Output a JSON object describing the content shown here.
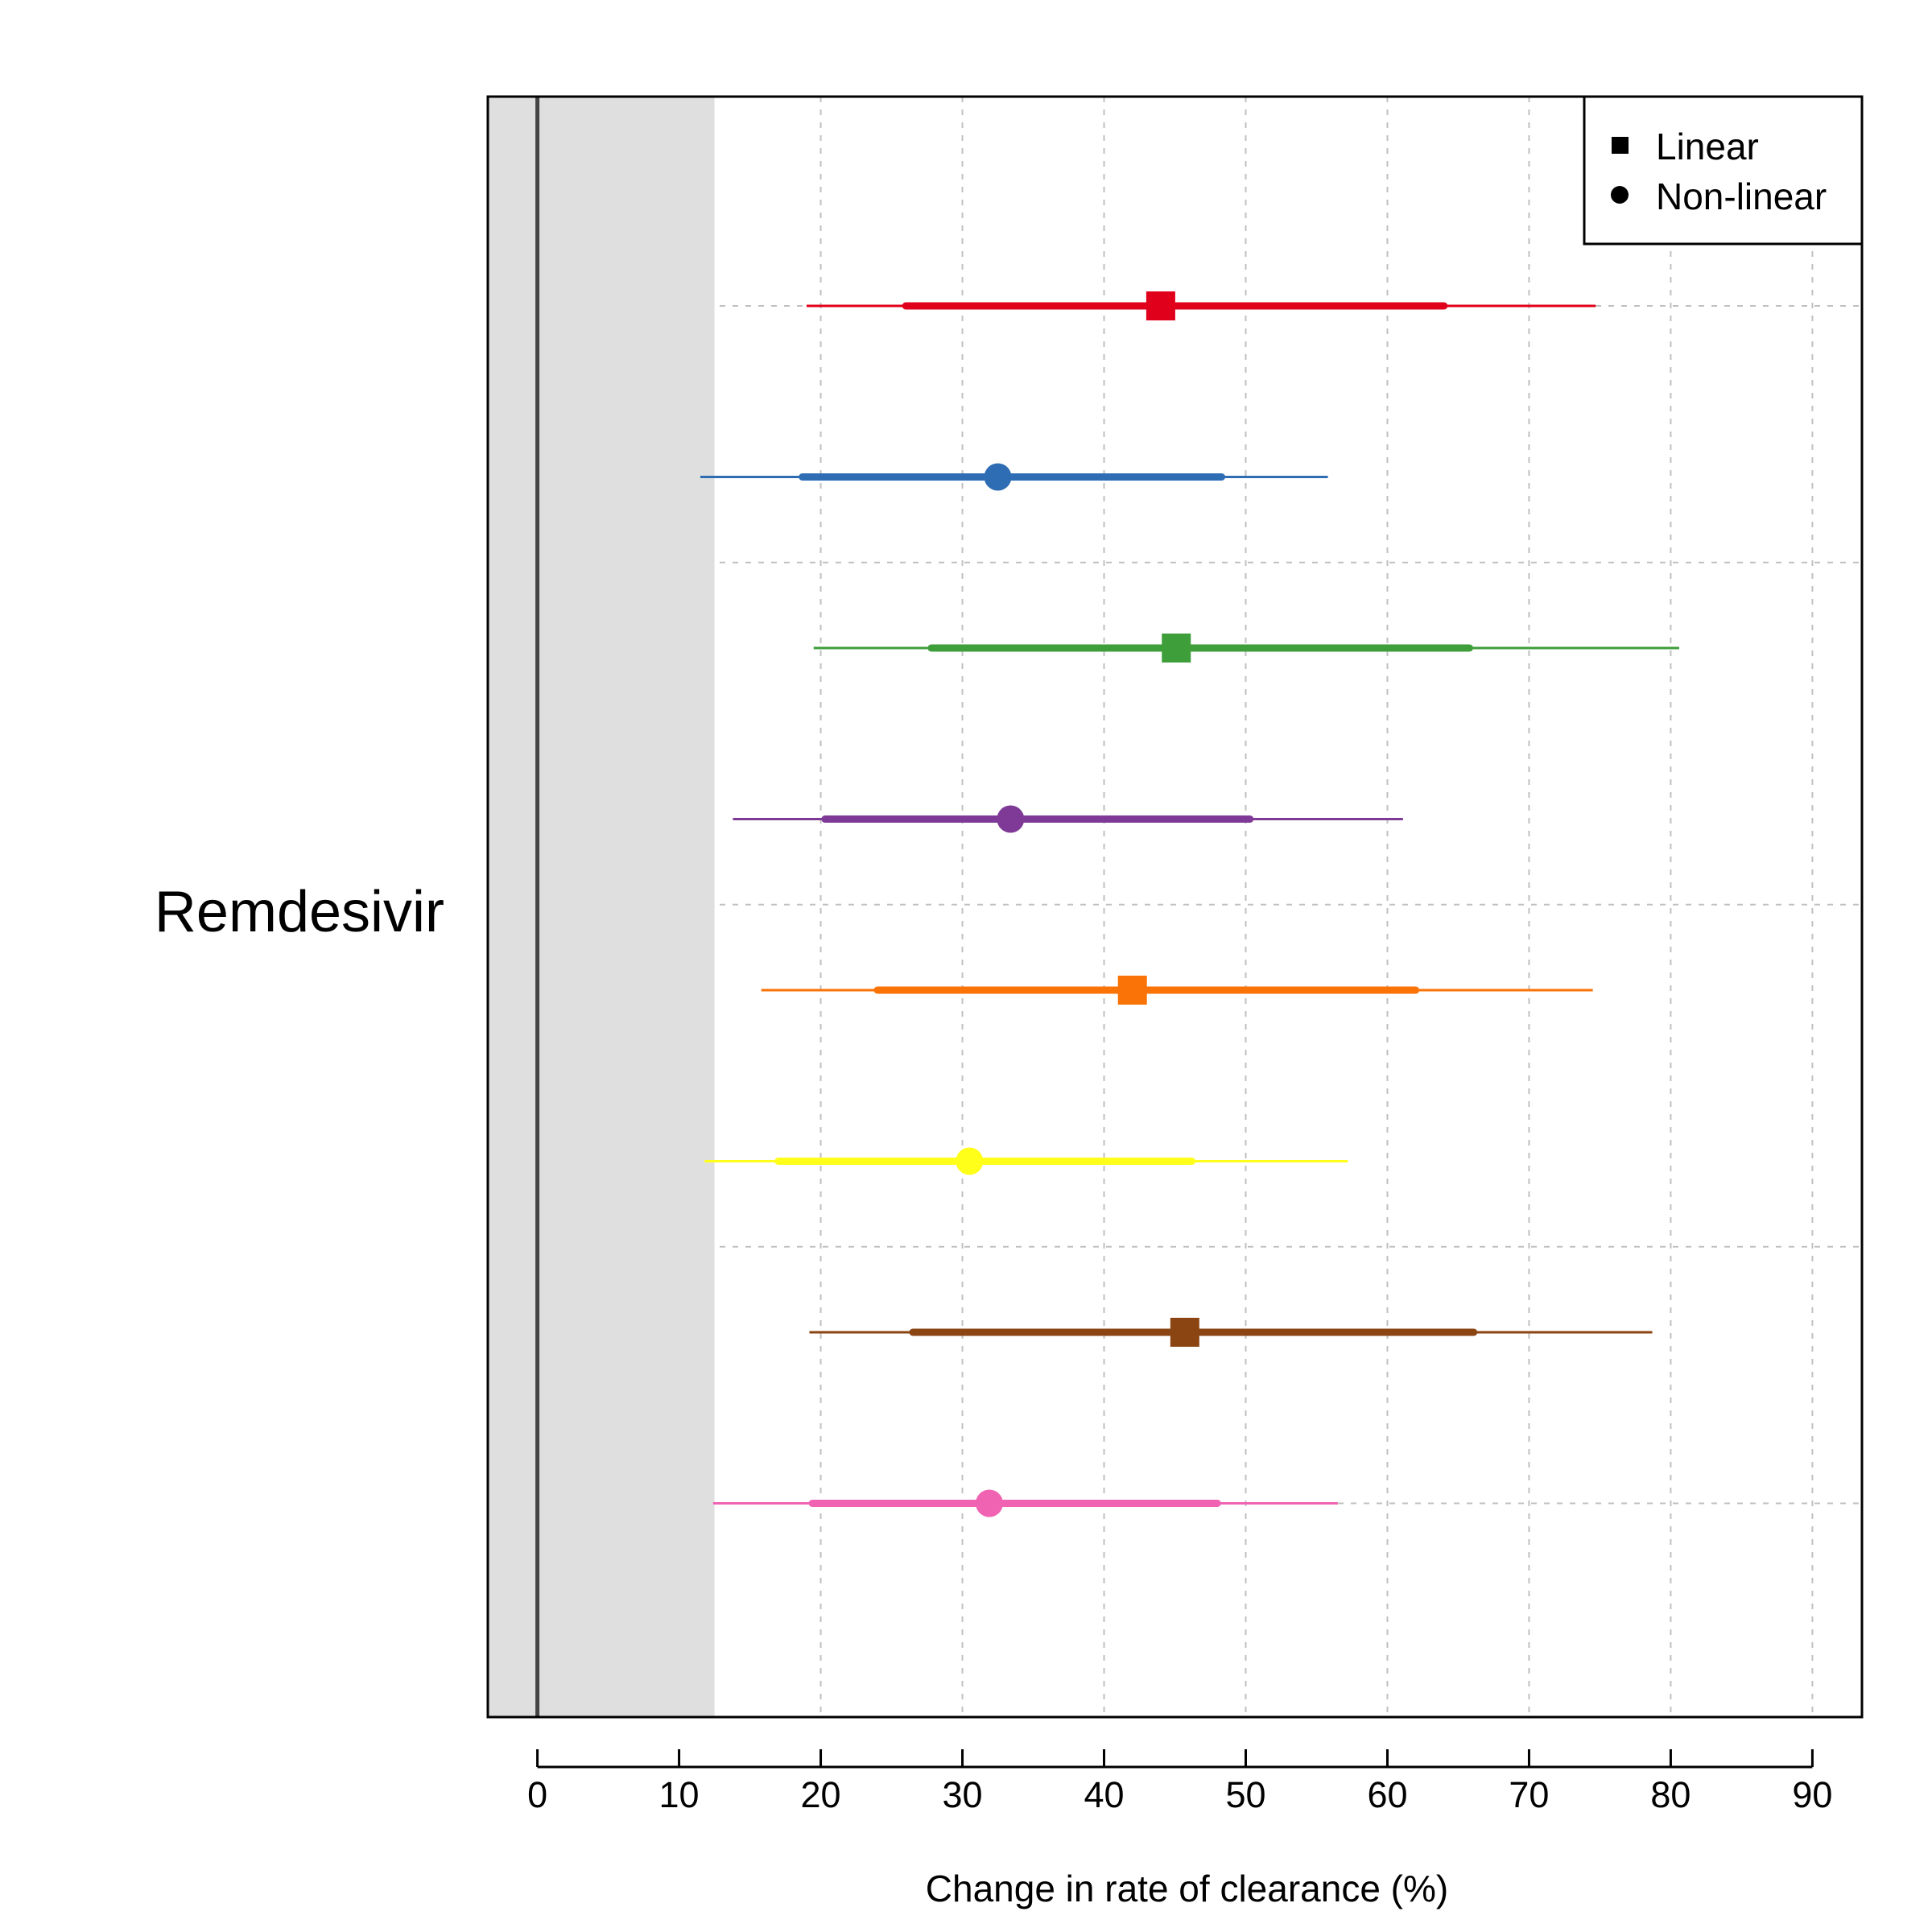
{
  "chart_data": {
    "type": "forest",
    "group_label": "Remdesivir",
    "xlabel": "Change in rate of clearance (%)",
    "xlim": [
      -3.5,
      93.5
    ],
    "xticks": [
      0,
      10,
      20,
      30,
      40,
      50,
      60,
      70,
      80,
      90
    ],
    "grid": true,
    "reference_line": 0,
    "shaded_region": [
      -3.5,
      12.5
    ],
    "legend": {
      "placement": "top-right",
      "entries": [
        {
          "label": "Linear",
          "shape": "square"
        },
        {
          "label": "Non-linear",
          "shape": "circle"
        }
      ]
    },
    "series": [
      {
        "shape": "square",
        "color": "#E0001B",
        "estimate": 44,
        "inner": [
          26,
          64
        ],
        "outer": [
          19,
          74.7
        ]
      },
      {
        "shape": "circle",
        "color": "#2E6DB4",
        "estimate": 32.5,
        "inner": [
          18.7,
          48.3
        ],
        "outer": [
          11.5,
          55.8
        ]
      },
      {
        "shape": "square",
        "color": "#3E9E3A",
        "estimate": 45.1,
        "inner": [
          27.8,
          65.8
        ],
        "outer": [
          19.5,
          80.6
        ]
      },
      {
        "shape": "circle",
        "color": "#7E3A96",
        "estimate": 33.4,
        "inner": [
          20.3,
          50.3
        ],
        "outer": [
          13.8,
          61.1
        ]
      },
      {
        "shape": "square",
        "color": "#F97306",
        "estimate": 42,
        "inner": [
          24,
          62
        ],
        "outer": [
          15.8,
          74.5
        ]
      },
      {
        "shape": "circle",
        "color": "#FFFF1A",
        "estimate": 30.5,
        "inner": [
          17,
          46.2
        ],
        "outer": [
          11.8,
          57.2
        ]
      },
      {
        "shape": "square",
        "color": "#8B4513",
        "estimate": 45.7,
        "inner": [
          26.5,
          66.1
        ],
        "outer": [
          19.2,
          78.7
        ]
      },
      {
        "shape": "circle",
        "color": "#F062B2",
        "estimate": 31.9,
        "inner": [
          19.4,
          48
        ],
        "outer": [
          12.4,
          56.5
        ]
      }
    ]
  }
}
